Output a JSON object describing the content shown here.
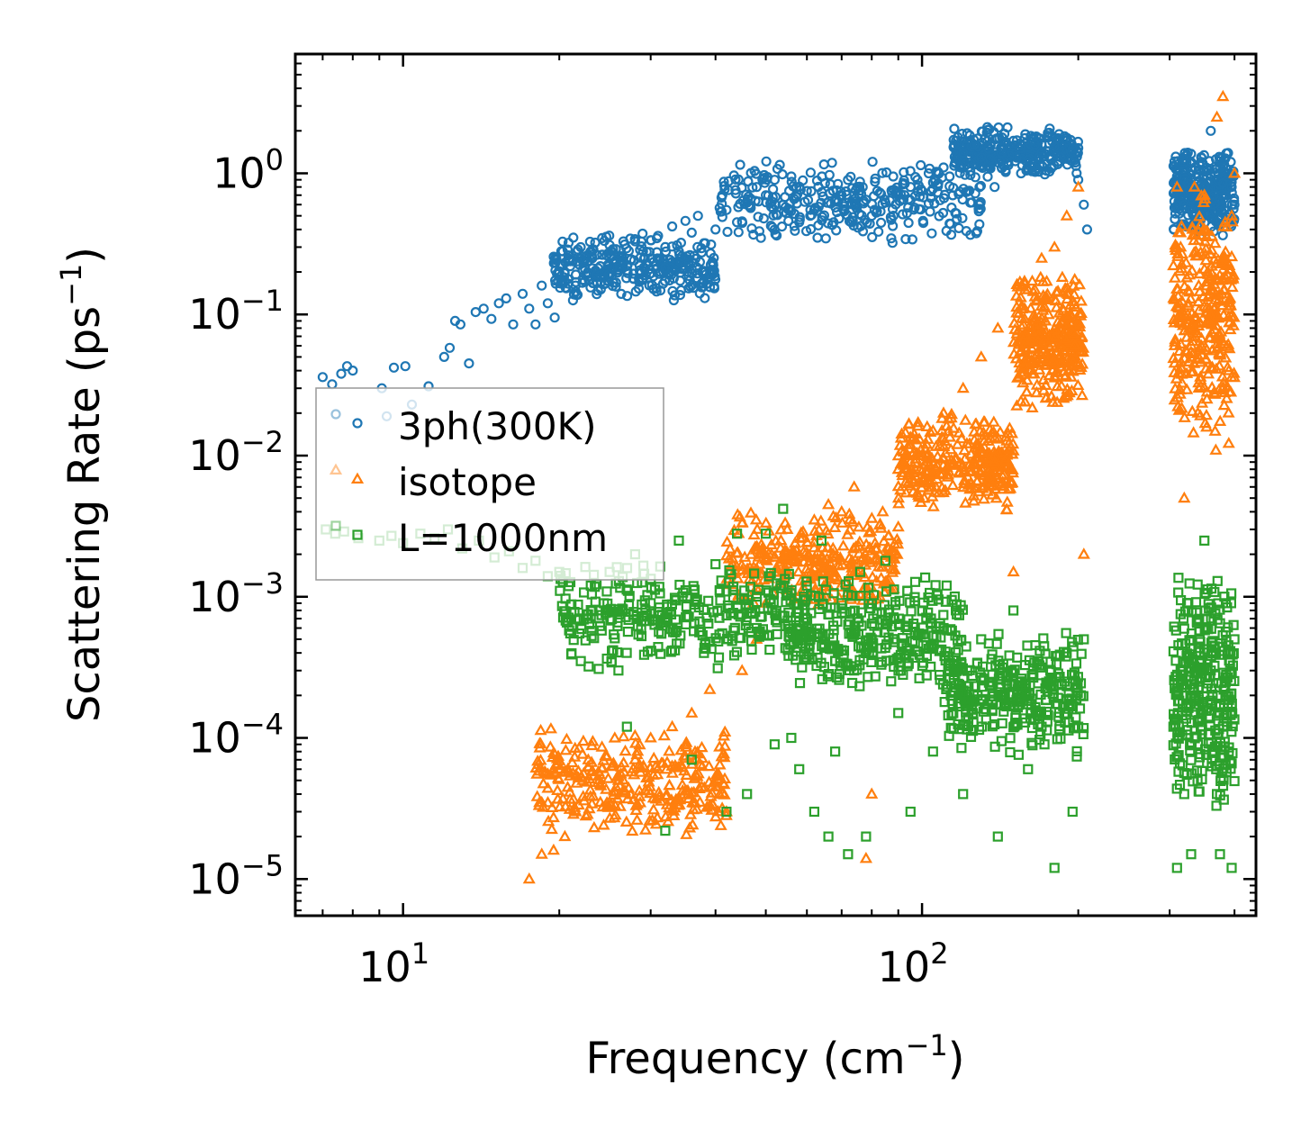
{
  "chart_data": {
    "type": "scatter",
    "title": "",
    "xlabel": "Frequency (cm$^{-1}$)",
    "xlabel_parts": {
      "main": "Frequency (cm",
      "sup": "−1",
      "tail": ")"
    },
    "ylabel": "Scattering Rate (ps$^{-1}$)",
    "ylabel_parts": {
      "main": "Scattering Rate (ps",
      "sup": "−1",
      "tail": ")"
    },
    "xscale": "log",
    "yscale": "log",
    "xlim": [
      6.2,
      440
    ],
    "ylim": [
      5.5e-06,
      7
    ],
    "x_ticks": [
      {
        "value": 10,
        "base": "10",
        "exp": "1"
      },
      {
        "value": 100,
        "base": "10",
        "exp": "2"
      }
    ],
    "y_ticks": [
      {
        "value": 1,
        "base": "10",
        "exp": "0"
      },
      {
        "value": 0.1,
        "base": "10",
        "exp": "−1"
      },
      {
        "value": 0.01,
        "base": "10",
        "exp": "−2"
      },
      {
        "value": 0.001,
        "base": "10",
        "exp": "−3"
      },
      {
        "value": 0.0001,
        "base": "10",
        "exp": "−4"
      },
      {
        "value": 1e-05,
        "base": "10",
        "exp": "−5"
      }
    ],
    "legend_position": "center-left",
    "series": [
      {
        "name": "3ph(300K)",
        "marker": "circle",
        "color": "#1f77b4",
        "points": [
          [
            7.0,
            0.036
          ],
          [
            7.3,
            0.032
          ],
          [
            7.6,
            0.038
          ],
          [
            7.8,
            0.043
          ],
          [
            8.0,
            0.04
          ],
          [
            9.1,
            0.03
          ],
          [
            9.3,
            0.019
          ],
          [
            9.6,
            0.042
          ],
          [
            10.1,
            0.043
          ],
          [
            10.4,
            0.023
          ],
          [
            11.2,
            0.031
          ],
          [
            12.0,
            0.05
          ],
          [
            12.3,
            0.058
          ],
          [
            12.6,
            0.09
          ],
          [
            12.9,
            0.085
          ],
          [
            13.4,
            0.045
          ],
          [
            13.8,
            0.104
          ],
          [
            14.3,
            0.11
          ],
          [
            14.8,
            0.093
          ],
          [
            15.3,
            0.12
          ],
          [
            15.8,
            0.13
          ],
          [
            16.3,
            0.085
          ],
          [
            17.0,
            0.14
          ],
          [
            17.5,
            0.11
          ],
          [
            18.0,
            0.085
          ],
          [
            18.5,
            0.16
          ],
          [
            19.0,
            0.12
          ],
          [
            19.6,
            0.095
          ],
          [
            20.0,
            0.2
          ],
          [
            20.5,
            0.17
          ],
          [
            21,
            0.22
          ],
          [
            21.5,
            0.16
          ],
          [
            22,
            0.25
          ],
          [
            22.5,
            0.19
          ],
          [
            23,
            0.28
          ],
          [
            24,
            0.22
          ],
          [
            25,
            0.31
          ],
          [
            26,
            0.26
          ],
          [
            27,
            0.22
          ],
          [
            28,
            0.33
          ],
          [
            29,
            0.28
          ],
          [
            30,
            0.25
          ],
          [
            31,
            0.36
          ],
          [
            32,
            0.3
          ],
          [
            33,
            0.42
          ],
          [
            34,
            0.28
          ],
          [
            35,
            0.46
          ],
          [
            36,
            0.38
          ],
          [
            37,
            0.5
          ],
          [
            38,
            0.32
          ],
          [
            40,
            0.4
          ],
          [
            42,
            0.55
          ],
          [
            44,
            0.45
          ],
          [
            46,
            0.62
          ],
          [
            48,
            0.8
          ],
          [
            50,
            0.7
          ],
          [
            52,
            0.9
          ],
          [
            54,
            0.6
          ],
          [
            56,
            0.95
          ],
          [
            58,
            0.45
          ],
          [
            60,
            0.75
          ],
          [
            62,
            0.55
          ],
          [
            65,
            0.85
          ],
          [
            68,
            0.65
          ],
          [
            70,
            0.7
          ],
          [
            73,
            0.45
          ],
          [
            75,
            0.8
          ],
          [
            78,
            0.65
          ],
          [
            80,
            0.5
          ],
          [
            82,
            0.75
          ],
          [
            85,
            0.62
          ],
          [
            88,
            0.95
          ],
          [
            90,
            0.7
          ],
          [
            92,
            0.85
          ],
          [
            95,
            0.8
          ],
          [
            98,
            0.9
          ],
          [
            100,
            0.75
          ],
          [
            103,
            1.0
          ],
          [
            106,
            0.88
          ],
          [
            110,
            1.1
          ],
          [
            113,
            0.95
          ],
          [
            116,
            1.2
          ],
          [
            120,
            1.4
          ],
          [
            123,
            1.1
          ],
          [
            126,
            1.6
          ],
          [
            130,
            1.3
          ],
          [
            134,
            1.5
          ],
          [
            138,
            0.8
          ],
          [
            142,
            1.4
          ],
          [
            146,
            1.2
          ],
          [
            150,
            1.7
          ],
          [
            155,
            1.5
          ],
          [
            160,
            1.25
          ],
          [
            165,
            1.6
          ],
          [
            170,
            1.4
          ],
          [
            175,
            1.8
          ],
          [
            180,
            1.55
          ],
          [
            185,
            1.3
          ],
          [
            190,
            1.7
          ],
          [
            195,
            1.5
          ],
          [
            200,
            0.9
          ],
          [
            205,
            0.6
          ],
          [
            208,
            0.4
          ],
          [
            310,
            0.95
          ],
          [
            315,
            0.7
          ],
          [
            320,
            0.6
          ],
          [
            325,
            0.85
          ],
          [
            330,
            1.2
          ],
          [
            335,
            0.75
          ],
          [
            340,
            0.55
          ],
          [
            345,
            1.3
          ],
          [
            350,
            0.8
          ],
          [
            355,
            0.6
          ],
          [
            360,
            2.0
          ],
          [
            365,
            0.7
          ],
          [
            370,
            0.45
          ],
          [
            375,
            1.1
          ],
          [
            380,
            0.85
          ],
          [
            385,
            0.7
          ],
          [
            390,
            1.0
          ],
          [
            395,
            0.8
          ],
          [
            400,
            0.6
          ]
        ],
        "bands": [
          {
            "x": [
              19.5,
              40
            ],
            "y": [
              0.12,
              0.38
            ]
          },
          {
            "x": [
              40,
              130
            ],
            "y": [
              0.3,
              1.3
            ]
          },
          {
            "x": [
              115,
              200
            ],
            "y": [
              0.9,
              2.2
            ]
          },
          {
            "x": [
              305,
              400
            ],
            "y": [
              0.35,
              1.5
            ]
          }
        ]
      },
      {
        "name": "isotope",
        "marker": "triangle",
        "color": "#ff7f0e",
        "points": [
          [
            17.5,
            1e-05
          ],
          [
            18.5,
            1.5e-05
          ],
          [
            19.5,
            1.6e-05
          ],
          [
            20.5,
            2e-05
          ],
          [
            21.5,
            3e-05
          ],
          [
            22.5,
            2.8e-05
          ],
          [
            24,
            3.5e-05
          ],
          [
            26,
            5e-05
          ],
          [
            28,
            7e-05
          ],
          [
            30,
            0.0001
          ],
          [
            33,
            0.00012
          ],
          [
            36,
            0.00015
          ],
          [
            39,
            0.00022
          ],
          [
            42,
            3e-05
          ],
          [
            45,
            0.0003
          ],
          [
            48,
            0.0005
          ],
          [
            50,
            0.0009
          ],
          [
            52,
            0.0015
          ],
          [
            55,
            0.003
          ],
          [
            58,
            0.002
          ],
          [
            62,
            0.0035
          ],
          [
            66,
            0.0045
          ],
          [
            70,
            0.004
          ],
          [
            74,
            0.006
          ],
          [
            78,
            1.4e-05
          ],
          [
            80,
            4e-05
          ],
          [
            84,
            0.004
          ],
          [
            90,
            0.008
          ],
          [
            95,
            0.012
          ],
          [
            100,
            0.01
          ],
          [
            105,
            0.015
          ],
          [
            110,
            0.02
          ],
          [
            120,
            0.03
          ],
          [
            130,
            0.05
          ],
          [
            140,
            0.08
          ],
          [
            150,
            0.0015
          ],
          [
            160,
            0.15
          ],
          [
            170,
            0.25
          ],
          [
            180,
            0.3
          ],
          [
            190,
            0.5
          ],
          [
            200,
            0.8
          ],
          [
            205,
            0.002
          ],
          [
            310,
            0.8
          ],
          [
            315,
            0.3
          ],
          [
            320,
            0.005
          ],
          [
            325,
            0.1
          ],
          [
            330,
            0.05
          ],
          [
            335,
            0.8
          ],
          [
            340,
            0.02
          ],
          [
            350,
            0.7
          ],
          [
            360,
            0.15
          ],
          [
            370,
            2.5
          ],
          [
            380,
            3.5
          ],
          [
            390,
            0.04
          ],
          [
            395,
            0.5
          ],
          [
            400,
            1.0
          ]
        ],
        "bands": [
          {
            "x": [
              18,
              42
            ],
            "y": [
              2e-05,
              0.00012
            ]
          },
          {
            "x": [
              42,
              90
            ],
            "y": [
              0.0008,
              0.004
            ]
          },
          {
            "x": [
              90,
              150
            ],
            "y": [
              0.004,
              0.02
            ]
          },
          {
            "x": [
              150,
              205
            ],
            "y": [
              0.02,
              0.2
            ]
          },
          {
            "x": [
              305,
              400
            ],
            "y": [
              0.01,
              0.8
            ]
          }
        ]
      },
      {
        "name": "L=1000nm",
        "marker": "square",
        "color": "#2ca02c",
        "points": [
          [
            7.1,
            0.003
          ],
          [
            7.4,
            0.0028
          ],
          [
            7.7,
            0.0029
          ],
          [
            8.2,
            0.0026
          ],
          [
            9.0,
            0.0025
          ],
          [
            9.5,
            0.0027
          ],
          [
            10.0,
            0.0024
          ],
          [
            10.8,
            0.0028
          ],
          [
            11.5,
            0.0026
          ],
          [
            12.2,
            0.003
          ],
          [
            13.0,
            0.0022
          ],
          [
            14.0,
            0.0025
          ],
          [
            15.0,
            0.0019
          ],
          [
            16.0,
            0.0021
          ],
          [
            17.0,
            0.0016
          ],
          [
            18.0,
            0.0018
          ],
          [
            19.0,
            0.0014
          ],
          [
            20.0,
            0.0015
          ],
          [
            21.0,
            0.00055
          ],
          [
            22.0,
            0.00035
          ],
          [
            23.0,
            0.0012
          ],
          [
            24.0,
            0.0008
          ],
          [
            25.0,
            0.0015
          ],
          [
            26.0,
            0.0003
          ],
          [
            27.0,
            0.00012
          ],
          [
            28.0,
            0.002
          ],
          [
            30.0,
            0.0009
          ],
          [
            32.0,
            2.2e-05
          ],
          [
            34.0,
            0.0025
          ],
          [
            36.0,
            7e-05
          ],
          [
            38.0,
            0.0004
          ],
          [
            40.0,
            0.0017
          ],
          [
            42.0,
            3e-05
          ],
          [
            44.0,
            0.0028
          ],
          [
            46.0,
            4e-05
          ],
          [
            48.0,
            0.0006
          ],
          [
            50.0,
            0.0028
          ],
          [
            52.0,
            9e-05
          ],
          [
            54.0,
            0.0042
          ],
          [
            56.0,
            0.0001
          ],
          [
            58.0,
            6e-05
          ],
          [
            60.0,
            0.0012
          ],
          [
            62.0,
            3e-05
          ],
          [
            64.0,
            0.0025
          ],
          [
            66.0,
            2e-05
          ],
          [
            68.0,
            8e-05
          ],
          [
            70.0,
            0.0009
          ],
          [
            72.0,
            1.5e-05
          ],
          [
            74.0,
            0.0003
          ],
          [
            76.0,
            0.0015
          ],
          [
            78.0,
            2e-05
          ],
          [
            80.0,
            0.0005
          ],
          [
            85.0,
            0.0018
          ],
          [
            90.0,
            0.00015
          ],
          [
            95.0,
            3e-05
          ],
          [
            100.0,
            0.0008
          ],
          [
            105.0,
            8e-05
          ],
          [
            110.0,
            0.0006
          ],
          [
            120.0,
            4e-05
          ],
          [
            130.0,
            0.0005
          ],
          [
            140.0,
            2e-05
          ],
          [
            150.0,
            0.0008
          ],
          [
            160.0,
            6e-05
          ],
          [
            170.0,
            0.00012
          ],
          [
            180.0,
            1.2e-05
          ],
          [
            190.0,
            0.0004
          ],
          [
            195.0,
            3e-05
          ],
          [
            200.0,
            0.00012
          ],
          [
            205.0,
            0.0005
          ],
          [
            305.0,
            0.00012
          ],
          [
            310.0,
            1.2e-05
          ],
          [
            315.0,
            0.0003
          ],
          [
            320.0,
            4e-05
          ],
          [
            325.0,
            0.0008
          ],
          [
            330.0,
            1.5e-05
          ],
          [
            335.0,
            0.0002
          ],
          [
            340.0,
            9e-05
          ],
          [
            350.0,
            0.0025
          ],
          [
            360.0,
            0.0003
          ],
          [
            370.0,
            4e-05
          ],
          [
            375.0,
            1.5e-05
          ],
          [
            380.0,
            0.00012
          ],
          [
            385.0,
            0.0009
          ],
          [
            390.0,
            8e-05
          ],
          [
            395.0,
            1.2e-05
          ],
          [
            400.0,
            0.0005
          ]
        ],
        "bands": [
          {
            "x": [
              20,
              60
            ],
            "y": [
              0.0003,
              0.0018
            ]
          },
          {
            "x": [
              55,
              120
            ],
            "y": [
              0.0002,
              0.0014
            ]
          },
          {
            "x": [
              110,
              205
            ],
            "y": [
              7e-05,
              0.0006
            ]
          },
          {
            "x": [
              305,
              400
            ],
            "y": [
              3e-05,
              0.0015
            ]
          }
        ]
      }
    ]
  }
}
